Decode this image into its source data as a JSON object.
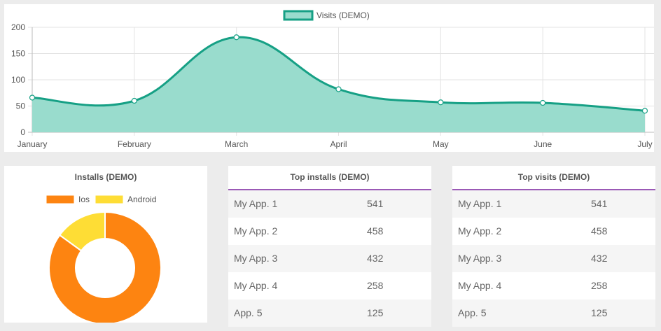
{
  "line_chart": {
    "legend_label": "Visits (DEMO)",
    "fill_color": "#99dccd",
    "line_color": "#16a085",
    "months": [
      "January",
      "February",
      "March",
      "April",
      "May",
      "June",
      "July"
    ],
    "values": [
      66,
      60,
      181,
      82,
      57,
      56,
      41
    ],
    "y_ticks": [
      "0",
      "50",
      "100",
      "150",
      "200"
    ],
    "ylim": [
      0,
      200
    ]
  },
  "donut": {
    "title": "Installs (DEMO)",
    "legend": [
      {
        "label": "Ios",
        "color": "#fd8411"
      },
      {
        "label": "Android",
        "color": "#fedd35"
      }
    ]
  },
  "chart_data": [
    {
      "type": "area",
      "title": "",
      "xlabel": "",
      "ylabel": "",
      "categories": [
        "January",
        "February",
        "March",
        "April",
        "May",
        "June",
        "July"
      ],
      "series": [
        {
          "name": "Visits (DEMO)",
          "values": [
            66,
            60,
            181,
            82,
            57,
            56,
            41
          ]
        }
      ],
      "ylim": [
        0,
        200
      ],
      "grid": true,
      "legend": "top-center"
    },
    {
      "type": "pie",
      "title": "Installs (DEMO)",
      "categories": [
        "Ios",
        "Android"
      ],
      "values": [
        85,
        15
      ],
      "legend": "top-center"
    }
  ],
  "top_installs": {
    "title": "Top installs (DEMO)",
    "rows": [
      {
        "name": "My App. 1",
        "value": "541"
      },
      {
        "name": "My App. 2",
        "value": "458"
      },
      {
        "name": "My App. 3",
        "value": "432"
      },
      {
        "name": "My App. 4",
        "value": "258"
      },
      {
        "name": "App. 5",
        "value": "125"
      }
    ]
  },
  "top_visits": {
    "title": "Top visits (DEMO)",
    "rows": [
      {
        "name": "My App. 1",
        "value": "541"
      },
      {
        "name": "My App. 2",
        "value": "458"
      },
      {
        "name": "My App. 3",
        "value": "432"
      },
      {
        "name": "My App. 4",
        "value": "258"
      },
      {
        "name": "App. 5",
        "value": "125"
      }
    ]
  }
}
